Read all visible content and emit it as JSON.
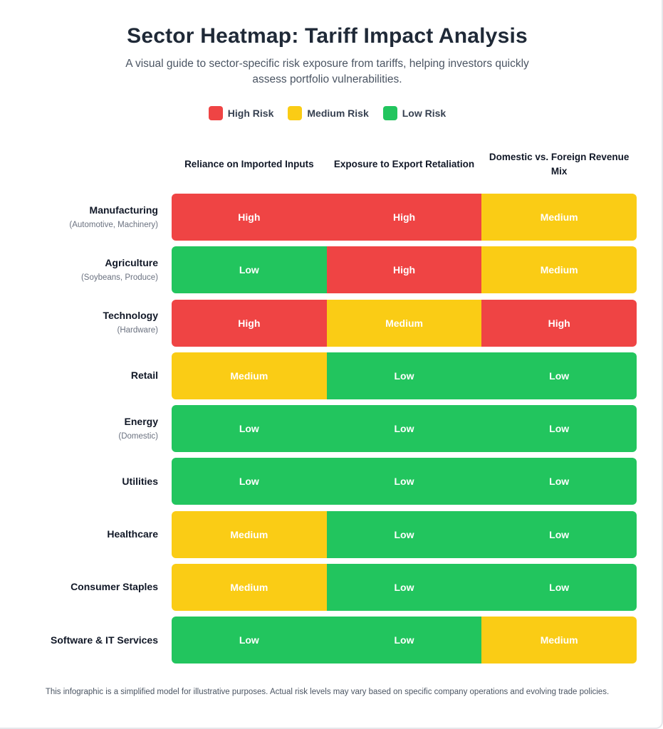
{
  "title": "Sector Heatmap: Tariff Impact Analysis",
  "subtitle": "A visual guide to sector-specific risk exposure from tariffs, helping investors quickly assess portfolio vulnerabilities.",
  "legend": [
    {
      "label": "High Risk",
      "level": "High",
      "color": "#ef4444"
    },
    {
      "label": "Medium Risk",
      "level": "Medium",
      "color": "#facc15"
    },
    {
      "label": "Low Risk",
      "level": "Low",
      "color": "#22c55e"
    }
  ],
  "footer": "This infographic is a simplified model for illustrative purposes. Actual risk levels may vary based on specific company operations and evolving trade policies.",
  "chart_data": {
    "type": "heatmap",
    "title": "Sector Heatmap: Tariff Impact Analysis",
    "columns": [
      "Reliance on Imported Inputs",
      "Exposure to Export Retaliation",
      "Domestic vs. Foreign Revenue Mix"
    ],
    "rows": [
      {
        "sector": "Manufacturing",
        "detail": "(Automotive, Machinery)",
        "values": [
          "High",
          "High",
          "Medium"
        ]
      },
      {
        "sector": "Agriculture",
        "detail": "(Soybeans, Produce)",
        "values": [
          "Low",
          "High",
          "Medium"
        ]
      },
      {
        "sector": "Technology",
        "detail": "(Hardware)",
        "values": [
          "High",
          "Medium",
          "High"
        ]
      },
      {
        "sector": "Retail",
        "detail": "",
        "values": [
          "Medium",
          "Low",
          "Low"
        ]
      },
      {
        "sector": "Energy",
        "detail": "(Domestic)",
        "values": [
          "Low",
          "Low",
          "Low"
        ]
      },
      {
        "sector": "Utilities",
        "detail": "",
        "values": [
          "Low",
          "Low",
          "Low"
        ]
      },
      {
        "sector": "Healthcare",
        "detail": "",
        "values": [
          "Medium",
          "Low",
          "Low"
        ]
      },
      {
        "sector": "Consumer Staples",
        "detail": "",
        "values": [
          "Medium",
          "Low",
          "Low"
        ]
      },
      {
        "sector": "Software & IT Services",
        "detail": "",
        "values": [
          "Low",
          "Low",
          "Medium"
        ]
      }
    ],
    "level_colors": {
      "High": "#ef4444",
      "Medium": "#facc15",
      "Low": "#22c55e"
    }
  }
}
